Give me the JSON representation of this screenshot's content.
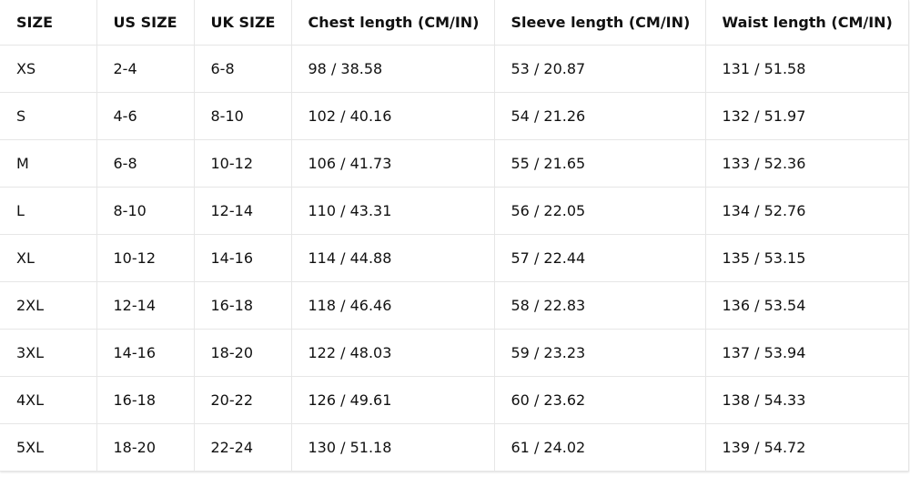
{
  "table": {
    "header": [
      "SIZE",
      "US SIZE",
      "UK SIZE",
      "Chest length (CM/IN)",
      "Sleeve length (CM/IN)",
      "Waist length (CM/IN)"
    ],
    "rows": [
      [
        "XS",
        "2-4",
        "6-8",
        "98 / 38.58",
        "53 / 20.87",
        "131 / 51.58"
      ],
      [
        "S",
        "4-6",
        "8-10",
        "102 / 40.16",
        "54 / 21.26",
        "132 / 51.97"
      ],
      [
        "M",
        "6-8",
        "10-12",
        "106 / 41.73",
        "55 / 21.65",
        "133 / 52.36"
      ],
      [
        "L",
        "8-10",
        "12-14",
        "110 / 43.31",
        "56 / 22.05",
        "134 / 52.76"
      ],
      [
        "XL",
        "10-12",
        "14-16",
        "114 / 44.88",
        "57 / 22.44",
        "135 / 53.15"
      ],
      [
        "2XL",
        "12-14",
        "16-18",
        "118 / 46.46",
        "58 / 22.83",
        "136 / 53.54"
      ],
      [
        "3XL",
        "14-16",
        "18-20",
        "122 / 48.03",
        "59 / 23.23",
        "137 / 53.94"
      ],
      [
        "4XL",
        "16-18",
        "20-22",
        "126 / 49.61",
        "60 / 23.62",
        "138 / 54.33"
      ],
      [
        "5XL",
        "18-20",
        "22-24",
        "130 / 51.18",
        "61 / 24.02",
        "139 / 54.72"
      ]
    ]
  }
}
